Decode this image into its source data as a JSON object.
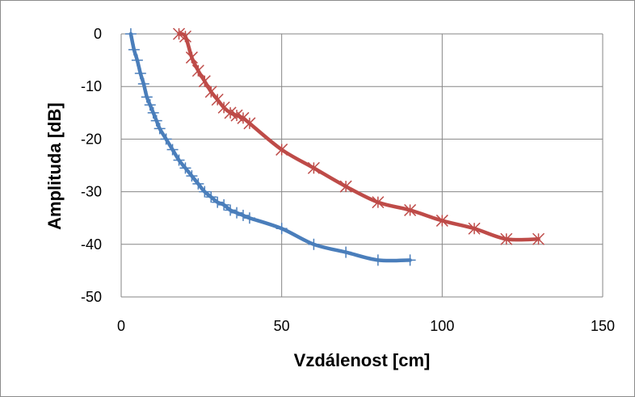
{
  "chart_data": {
    "type": "line",
    "title": "",
    "xlabel": "Vzdálenost [cm]",
    "ylabel": "Amplituda [dB]",
    "xlim": [
      0,
      150
    ],
    "ylim": [
      -50,
      0
    ],
    "xticks": [
      0,
      50,
      100,
      150
    ],
    "yticks": [
      0,
      -10,
      -20,
      -30,
      -40,
      -50
    ],
    "xtick_labels": [
      "0",
      "50",
      "100",
      "150"
    ],
    "ytick_labels": [
      "0",
      "-10",
      "-20",
      "-30",
      "-40",
      "-50"
    ],
    "grid": true,
    "legend": "none",
    "series": [
      {
        "color": "#4a7ebb",
        "marker": "plus",
        "x": [
          3,
          4,
          5,
          6,
          7,
          8,
          9,
          10,
          11,
          12,
          14,
          16,
          18,
          20,
          22,
          24,
          26,
          28,
          30,
          32,
          34,
          36,
          38,
          40,
          50,
          60,
          70,
          80,
          90
        ],
        "y": [
          0,
          -3,
          -5,
          -7.5,
          -9.5,
          -12,
          -13.5,
          -15,
          -16.5,
          -18,
          -20,
          -22,
          -24,
          -25.5,
          -27,
          -28.5,
          -30,
          -31,
          -32,
          -32.5,
          -33.5,
          -34,
          -34.5,
          -35,
          -37,
          -40,
          -41.5,
          -43,
          -43
        ]
      },
      {
        "color": "#be4b48",
        "marker": "star",
        "x": [
          18,
          20,
          22,
          24,
          26,
          28,
          30,
          32,
          34,
          36,
          38,
          40,
          50,
          60,
          70,
          80,
          90,
          100,
          110,
          120,
          130
        ],
        "y": [
          0,
          -0.5,
          -4.5,
          -7,
          -9,
          -11,
          -12.5,
          -14,
          -15,
          -15.5,
          -16,
          -17,
          -22,
          -25.5,
          -29,
          -32,
          -33.5,
          -35.5,
          -37,
          -39,
          -39
        ]
      }
    ]
  }
}
